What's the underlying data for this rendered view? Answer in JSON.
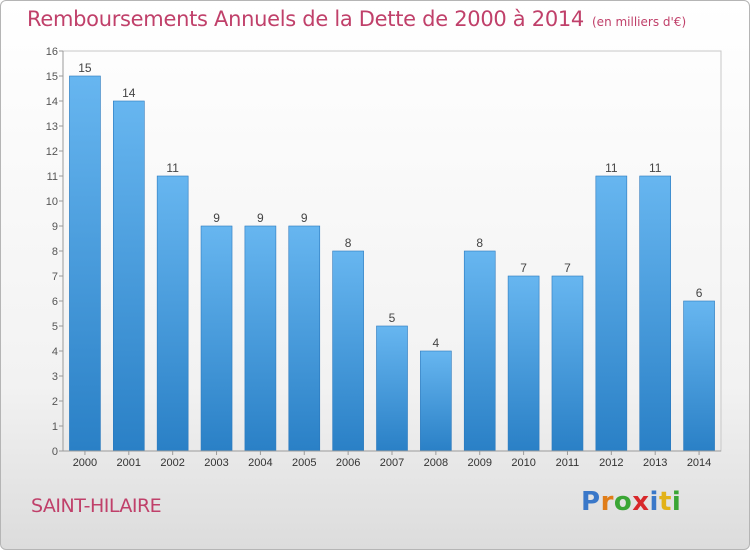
{
  "title": "Remboursements Annuels de la Dette de 2000 à 2014",
  "unit": "(en milliers d'€)",
  "commune": "SAINT-HILAIRE",
  "logo": "Proxiti",
  "colors": {
    "bar_light": "#67b6f0",
    "bar_dark": "#2a80c6",
    "title": "#c0406a"
  },
  "chart_data": {
    "type": "bar",
    "title": "Remboursements Annuels de la Dette de 2000 à 2014",
    "categories": [
      "2000",
      "2001",
      "2002",
      "2003",
      "2004",
      "2005",
      "2006",
      "2007",
      "2008",
      "2009",
      "2010",
      "2011",
      "2012",
      "2013",
      "2014"
    ],
    "values": [
      15,
      14,
      11,
      9,
      9,
      9,
      8,
      5,
      4,
      8,
      7,
      7,
      11,
      11,
      6
    ],
    "ylim": [
      0,
      16
    ],
    "yticks": [
      0,
      1,
      2,
      3,
      4,
      5,
      6,
      7,
      8,
      9,
      10,
      11,
      12,
      13,
      14,
      15,
      16
    ],
    "grid": false
  }
}
